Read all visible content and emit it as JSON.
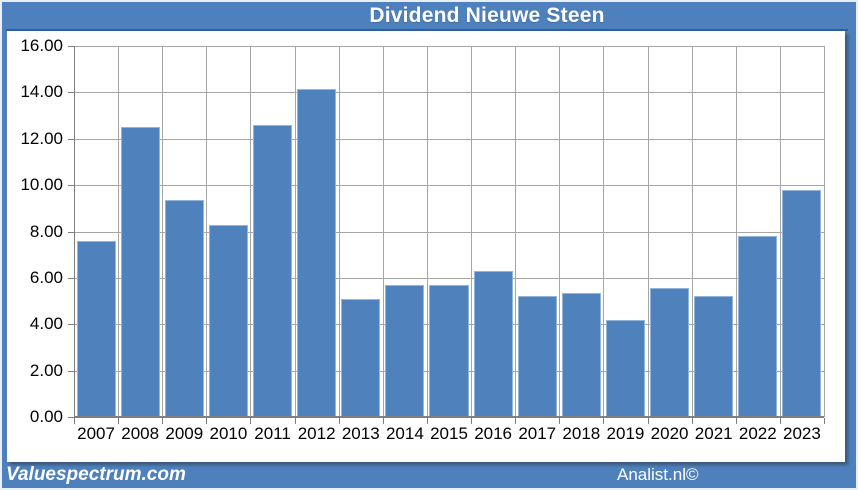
{
  "window": {
    "title": "Dividend Nieuwe Steen"
  },
  "footer": {
    "left": "Valuespectrum.com",
    "right": "Analist.nl©"
  },
  "colors": {
    "background": "#4e80bd",
    "title_text": "#ffffff",
    "title_underline": "#2d5f9b",
    "panel": "#ffffff",
    "bar": "#4f81bd",
    "bar_edge": "#93b5da",
    "gridline": "#a6a6a6",
    "axis": "#7f7f7f",
    "label_text": "#000000"
  },
  "chart_data": {
    "type": "bar",
    "title": "Dividend Nieuwe Steen",
    "categories": [
      "2007",
      "2008",
      "2009",
      "2010",
      "2011",
      "2012",
      "2013",
      "2014",
      "2015",
      "2016",
      "2017",
      "2018",
      "2019",
      "2020",
      "2021",
      "2022",
      "2023"
    ],
    "values": [
      7.6,
      12.5,
      9.35,
      8.3,
      12.6,
      14.15,
      5.1,
      5.7,
      5.7,
      6.3,
      5.2,
      5.35,
      4.2,
      5.55,
      5.2,
      7.8,
      9.8
    ],
    "xlabel": "",
    "ylabel": "",
    "ylim": [
      0,
      16
    ],
    "ytick_step": 2,
    "ytick_labels": [
      "16.00",
      "14.00",
      "12.00",
      "10.00",
      "8.00",
      "6.00",
      "4.00",
      "2.00",
      "0.00"
    ],
    "grid": true,
    "legend": false,
    "series_color": "#4f81bd"
  }
}
